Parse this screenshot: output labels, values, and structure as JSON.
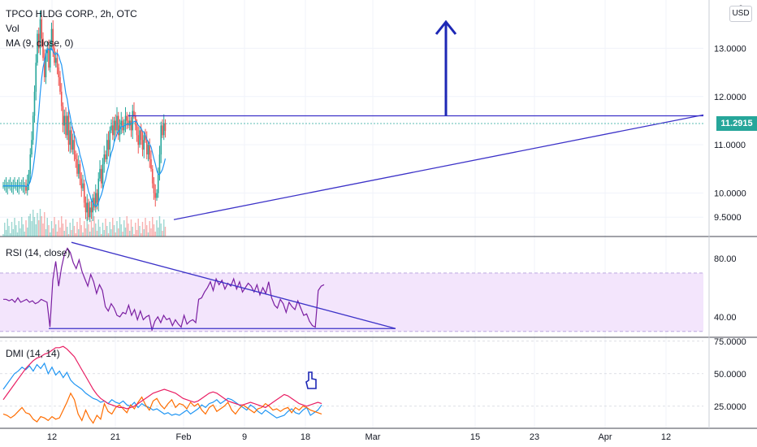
{
  "header": {
    "symbol_line": "TPCO HLDG CORP., 2h, OTC",
    "vol_label": "Vol",
    "ma_label": "MA (9, close, 0)",
    "rsi_label": "RSI (14, close)",
    "dmi_label": "DMI (14, 14)"
  },
  "price_axis": {
    "currency": "USD",
    "last_price": "11.2915",
    "top_partial": "0",
    "colors": {
      "last_price": "#26a69a"
    }
  },
  "colors": {
    "up": "#26a69a",
    "down": "#ef5350",
    "ma": "#2196f3",
    "drawing": "#3c32c8",
    "rsi": "#7b1fa2",
    "rsi_band": "#f3e5fc",
    "dmi_plus": "#2196f3",
    "dmi_minus": "#ff6d00",
    "adx": "#e91e63"
  },
  "icons": {
    "arrow": "up-arrow-icon",
    "pointer": "hand-pointer-icon"
  },
  "chart_data": [
    {
      "type": "candlestick",
      "title": "TPCO HLDG CORP., 2h, OTC",
      "y_ticks": [
        "13.0000",
        "12.0000",
        "11.0000",
        "10.0000",
        "9.5000"
      ],
      "ylim": [
        9.1,
        14.0
      ],
      "x_ticks": [
        "12",
        "21",
        "Feb",
        "9",
        "18",
        "Mar",
        "15",
        "23",
        "Apr",
        "12"
      ],
      "ma_period": 9,
      "closes": [
        10.15,
        10.15,
        10.15,
        10.15,
        10.15,
        10.15,
        10.15,
        10.15,
        10.15,
        10.15,
        10.15,
        10.15,
        10.15,
        10.15,
        10.15,
        10.15,
        10.05,
        10.2,
        10.4,
        10.8,
        11.1,
        11.6,
        12.1,
        12.7,
        13.3,
        13.0,
        13.6,
        13.2,
        12.8,
        12.4,
        12.9,
        13.0,
        12.6,
        13.1,
        13.4,
        13.0,
        12.7,
        12.8,
        12.6,
        12.4,
        12.1,
        11.8,
        11.4,
        11.6,
        11.2,
        11.6,
        11.0,
        11.3,
        10.9,
        11.1,
        10.8,
        10.7,
        10.4,
        10.6,
        10.3,
        10.1,
        10.2,
        9.8,
        9.6,
        9.8,
        9.5,
        9.7,
        9.6,
        9.9,
        9.7,
        10.0,
        9.8,
        10.3,
        10.5,
        10.2,
        10.6,
        10.8,
        10.7,
        11.1,
        10.9,
        11.3,
        11.4,
        11.2,
        11.5,
        11.3,
        11.6,
        11.2,
        11.4,
        11.5,
        11.3,
        11.4,
        11.6,
        11.5,
        11.4,
        11.5,
        11.3,
        11.7,
        11.6,
        11.4,
        11.2,
        11.0,
        11.3,
        11.1,
        10.9,
        11.2,
        11.1,
        10.8,
        11.0,
        10.7,
        10.5,
        10.2,
        10.0,
        9.9,
        10.0,
        10.4,
        10.8,
        11.4,
        11.2,
        11.45,
        11.29
      ],
      "annotations": {
        "resistance_line": [
          11.6,
          11.6
        ],
        "ascending_support": [
          9.45,
          11.62
        ],
        "target_arrow": "up"
      }
    },
    {
      "type": "bar",
      "series": [
        {
          "name": "Vol"
        }
      ],
      "note": "volume histogram colored by candle direction"
    },
    {
      "type": "line",
      "series": [
        {
          "name": "RSI (14, close)"
        }
      ],
      "y_ticks": [
        "80.00",
        "40.00"
      ],
      "ylim": [
        26,
        95
      ],
      "band": [
        30,
        70
      ],
      "values": [
        52,
        52,
        51,
        52,
        50,
        53,
        50,
        51,
        52,
        50,
        51,
        49,
        50,
        52,
        51,
        50,
        33,
        65,
        78,
        61,
        74,
        83,
        87,
        84,
        77,
        73,
        79,
        71,
        66,
        61,
        69,
        64,
        56,
        62,
        58,
        47,
        44,
        49,
        46,
        41,
        40,
        43,
        42,
        48,
        41,
        45,
        38,
        44,
        38,
        40,
        41,
        31,
        37,
        40,
        36,
        41,
        38,
        39,
        34,
        38,
        35,
        33,
        41,
        35,
        37,
        38,
        36,
        52,
        53,
        57,
        60,
        64,
        58,
        66,
        62,
        65,
        59,
        63,
        61,
        66,
        59,
        64,
        57,
        60,
        63,
        61,
        57,
        62,
        55,
        60,
        56,
        64,
        53,
        48,
        46,
        52,
        49,
        43,
        50,
        47,
        45,
        51,
        46,
        41,
        42,
        37,
        34,
        33,
        58,
        61,
        62
      ],
      "annotations": {
        "descending_trendline": [
          91,
          32
        ],
        "horizontal_floor": [
          32,
          32
        ]
      }
    },
    {
      "type": "line",
      "series": [
        {
          "name": "+DI",
          "values": [
            38,
            42,
            46,
            50,
            52,
            55,
            53,
            56,
            52,
            57,
            54,
            58,
            50,
            55,
            49,
            52,
            47,
            51,
            45,
            42,
            40,
            38,
            35,
            33,
            31,
            30,
            28,
            29,
            27,
            30,
            28,
            27,
            29,
            26,
            25,
            28,
            24,
            27,
            25,
            24,
            22,
            23,
            21,
            19,
            20,
            18,
            19,
            18,
            20,
            22,
            19,
            21,
            23,
            26,
            24,
            27,
            28,
            30,
            27,
            29,
            31,
            30,
            28,
            26,
            24,
            22,
            26,
            24,
            21,
            19,
            22,
            20,
            18,
            16,
            17,
            18,
            21,
            23,
            20,
            19,
            22,
            24,
            18,
            20,
            22,
            26
          ]
        },
        {
          "name": "-DI",
          "values": [
            19,
            18,
            16,
            18,
            21,
            24,
            20,
            19,
            15,
            13,
            17,
            16,
            14,
            17,
            15,
            16,
            22,
            28,
            35,
            30,
            19,
            14,
            22,
            16,
            12,
            18,
            15,
            27,
            21,
            19,
            24,
            26,
            23,
            20,
            26,
            23,
            28,
            32,
            26,
            22,
            29,
            31,
            26,
            23,
            27,
            30,
            24,
            27,
            26,
            23,
            28,
            25,
            27,
            22,
            19,
            24,
            26,
            21,
            23,
            25,
            28,
            22,
            19,
            23,
            26,
            24,
            22,
            20,
            23,
            24,
            27,
            25,
            22,
            23,
            21,
            23,
            24,
            20,
            24,
            22,
            25,
            24,
            22,
            21,
            20,
            19
          ]
        },
        {
          "name": "ADX",
          "values": [
            30,
            34,
            38,
            42,
            46,
            50,
            54,
            57,
            60,
            62,
            63,
            65,
            66,
            68,
            70,
            70,
            71,
            69,
            66,
            63,
            58,
            53,
            48,
            43,
            38,
            34,
            31,
            29,
            27,
            26,
            25,
            24,
            24,
            23,
            24,
            25,
            27,
            29,
            31,
            33,
            35,
            36,
            37,
            38,
            37,
            36,
            35,
            33,
            31,
            30,
            29,
            28,
            29,
            31,
            33,
            35,
            36,
            35,
            33,
            31,
            29,
            28,
            27,
            26,
            26,
            27,
            28,
            27,
            26,
            25,
            24,
            26,
            28,
            30,
            32,
            34,
            33,
            31,
            29,
            27,
            26,
            25,
            26,
            27,
            28,
            27
          ]
        }
      ],
      "y_ticks": [
        "75.0000",
        "50.0000",
        "25.0000"
      ],
      "ylim": [
        8,
        78
      ]
    }
  ]
}
